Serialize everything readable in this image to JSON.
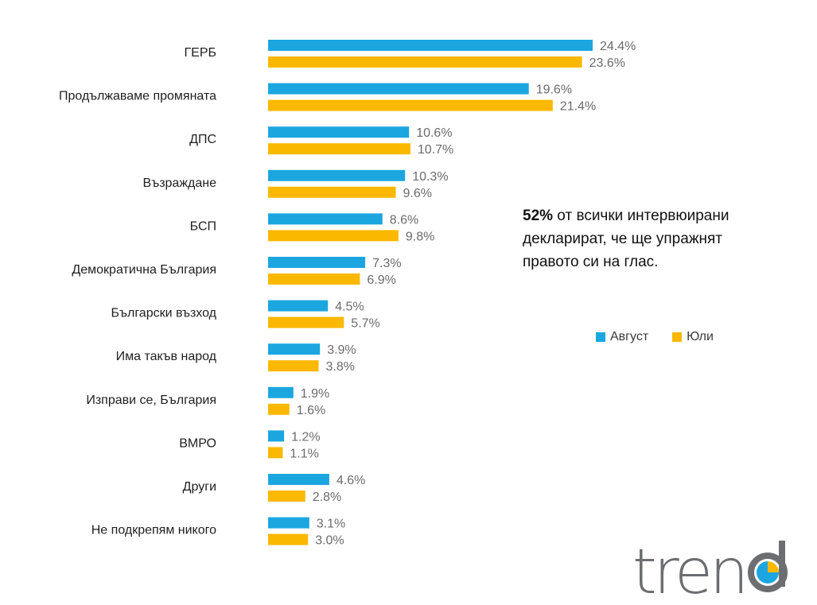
{
  "chart_data": {
    "type": "bar",
    "orientation": "horizontal",
    "categories": [
      "ГЕРБ",
      "Продължаваме промяната",
      "ДПС",
      "Възраждане",
      "БСП",
      "Демократична България",
      "Български възход",
      "Има такъв народ",
      "Изправи се, България",
      "ВМРО",
      "Други",
      "Не подкрепям никого"
    ],
    "series": [
      {
        "name": "Август",
        "color": "#1ba6e0",
        "values": [
          24.4,
          19.6,
          10.6,
          10.3,
          8.6,
          7.3,
          4.5,
          3.9,
          1.9,
          1.2,
          4.6,
          3.1
        ],
        "labels": [
          "24.4%",
          "19.6%",
          "10.6%",
          "10.3%",
          "8.6%",
          "7.3%",
          "4.5%",
          "3.9%",
          "1.9%",
          "1.2%",
          "4.6%",
          "3.1%"
        ]
      },
      {
        "name": "Юли",
        "color": "#fbb800",
        "values": [
          23.6,
          21.4,
          10.7,
          9.6,
          9.8,
          6.9,
          5.7,
          3.8,
          1.6,
          1.1,
          2.8,
          3.0
        ],
        "labels": [
          "23.6%",
          "21.4%",
          "10.7%",
          "9.6%",
          "9.8%",
          "6.9%",
          "5.7%",
          "3.8%",
          "1.6%",
          "1.1%",
          "2.8%",
          "3.0%"
        ]
      }
    ],
    "xlim": [
      0,
      24.4
    ],
    "grid": false,
    "legend": "right"
  },
  "note": {
    "bold": "52%",
    "text": " от всички интервюирани декларират, че ще упражнят правото си на глас."
  },
  "legend": {
    "items": [
      {
        "label": "Август",
        "color": "#1ba6e0"
      },
      {
        "label": "Юли",
        "color": "#fbb800"
      }
    ]
  },
  "logo": {
    "text": "trend",
    "colors": {
      "text": "#6d6e71",
      "accent_blue": "#1ba6e0",
      "accent_yellow": "#fbb800"
    }
  }
}
